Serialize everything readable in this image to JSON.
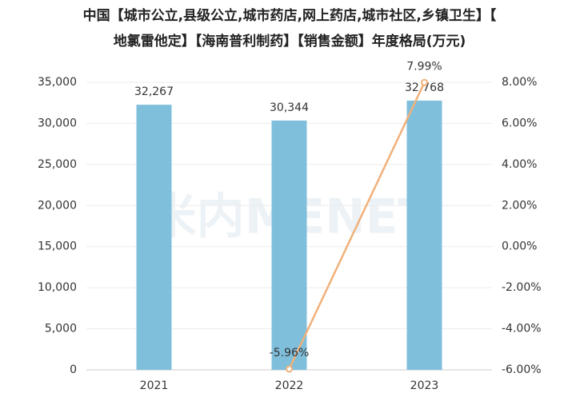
{
  "chart_data": {
    "type": "bar",
    "title": [
      "中国【城市公立,县级公立,城市药店,网上药店,城市社区,乡镇卫生】【",
      "地氯雷他定】【海南普利制药】【销售金额】年度格局(万元)"
    ],
    "watermark": "米内MENET",
    "categories": [
      "2021",
      "2022",
      "2023"
    ],
    "series": [
      {
        "type": "bar",
        "color": "#7fbfdc",
        "values": [
          32267,
          30344,
          32768
        ],
        "value_labels": [
          "32,267",
          "30,344",
          "32,768"
        ]
      },
      {
        "type": "line",
        "axis": "y2",
        "color": "#f0b07a",
        "values": [
          null,
          -5.96,
          7.99
        ],
        "value_labels": [
          null,
          "-5.96%",
          "7.99%"
        ]
      }
    ],
    "ylim": [
      0,
      35000
    ],
    "yticks": [
      0,
      {
        "value": 5000,
        "label": "5,000"
      },
      {
        "value": 10000,
        "label": "10,000"
      },
      {
        "value": 15000,
        "label": "15,000"
      },
      {
        "value": 20000,
        "label": "20,000"
      },
      {
        "value": 25000,
        "label": "25,000"
      },
      {
        "value": 30000,
        "label": "30,000"
      },
      {
        "value": 35000,
        "label": "35,000"
      }
    ],
    "y2lim": [
      -6,
      8
    ],
    "y2ticks": [
      {
        "value": -6,
        "label": "-6.00%"
      },
      {
        "value": -4,
        "label": "-4.00%"
      },
      {
        "value": -2,
        "label": "-2.00%"
      },
      {
        "value": 0,
        "label": "0.00%"
      },
      {
        "value": 2,
        "label": "2.00%"
      },
      {
        "value": 4,
        "label": "4.00%"
      },
      {
        "value": 6,
        "label": "6.00%"
      },
      {
        "value": 8,
        "label": "8.00%"
      }
    ],
    "grid": true
  }
}
